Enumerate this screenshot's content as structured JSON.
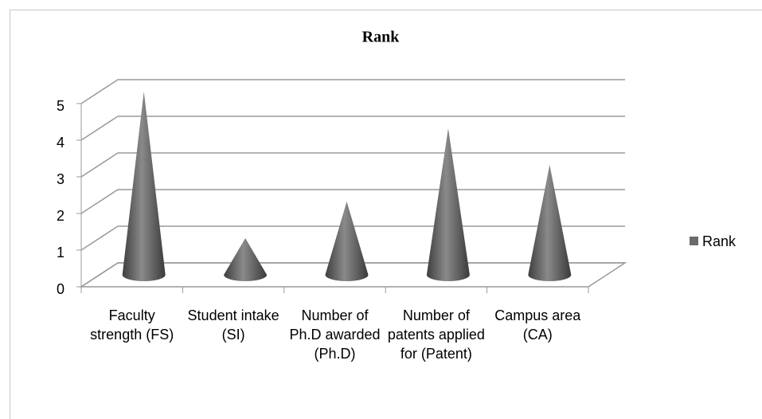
{
  "chart_data": {
    "type": "cone",
    "title": "Rank",
    "categories": [
      "Faculty strength (FS)",
      "Student intake (SI)",
      "Number of Ph.D awarded (Ph.D)",
      "Number of patents applied for (Patent)",
      "Campus area (CA)"
    ],
    "series": [
      {
        "name": "Rank",
        "color": "#6b6b6b",
        "values": [
          5,
          1,
          2,
          4,
          3
        ]
      }
    ],
    "ylim": [
      0,
      5
    ],
    "yticks": [
      0,
      1,
      2,
      3,
      4,
      5
    ],
    "grid": true,
    "legend": "right"
  }
}
